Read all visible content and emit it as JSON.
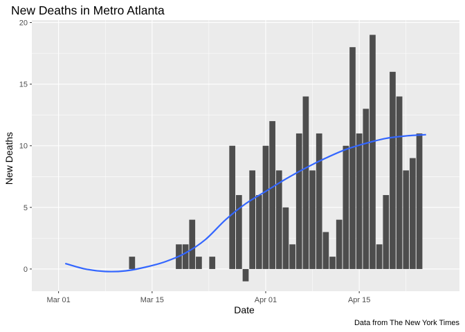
{
  "chart_data": {
    "type": "bar",
    "title": "New Deaths in Metro Atlanta",
    "xlabel": "Date",
    "ylabel": "New Deaths",
    "caption": "Data from The New York Times",
    "x_ticks": [
      {
        "label": "Mar 01",
        "date": "2020-03-01"
      },
      {
        "label": "Mar 15",
        "date": "2020-03-15"
      },
      {
        "label": "Apr 01",
        "date": "2020-04-01"
      },
      {
        "label": "Apr 15",
        "date": "2020-04-15"
      }
    ],
    "y_ticks": [
      0,
      5,
      10,
      15,
      20
    ],
    "xlim": [
      "2020-02-26",
      "2020-04-30"
    ],
    "ylim": [
      -1.8,
      20.2
    ],
    "grid": true,
    "colors": {
      "panel": "#ebebeb",
      "grid": "#ffffff",
      "bar": "#4d4d4d",
      "smooth": "#3366ff"
    },
    "series": [
      {
        "type": "bar",
        "x": [
          "2020-03-12",
          "2020-03-19",
          "2020-03-20",
          "2020-03-21",
          "2020-03-22",
          "2020-03-24",
          "2020-03-27",
          "2020-03-28",
          "2020-03-29",
          "2020-03-30",
          "2020-03-31",
          "2020-04-01",
          "2020-04-02",
          "2020-04-03",
          "2020-04-04",
          "2020-04-05",
          "2020-04-06",
          "2020-04-07",
          "2020-04-08",
          "2020-04-09",
          "2020-04-10",
          "2020-04-11",
          "2020-04-12",
          "2020-04-13",
          "2020-04-14",
          "2020-04-15",
          "2020-04-16",
          "2020-04-17",
          "2020-04-18",
          "2020-04-19",
          "2020-04-20",
          "2020-04-21",
          "2020-04-22",
          "2020-04-23",
          "2020-04-24",
          "2020-04-25"
        ],
        "values": [
          1,
          2,
          2,
          4,
          1,
          1,
          10,
          6,
          -1,
          8,
          6,
          10,
          12,
          8,
          5,
          2,
          11,
          14,
          8,
          11,
          3,
          1,
          4,
          10,
          18,
          11,
          13,
          19,
          2,
          6,
          16,
          14,
          8,
          9,
          11,
          0
        ]
      },
      {
        "type": "smooth",
        "x": [
          "2020-03-02",
          "2020-03-05",
          "2020-03-08",
          "2020-03-11",
          "2020-03-14",
          "2020-03-17",
          "2020-03-20",
          "2020-03-23",
          "2020-03-26",
          "2020-03-29",
          "2020-04-01",
          "2020-04-04",
          "2020-04-07",
          "2020-04-10",
          "2020-04-13",
          "2020-04-16",
          "2020-04-19",
          "2020-04-22",
          "2020-04-25"
        ],
        "values": [
          0.45,
          0.0,
          -0.2,
          -0.15,
          0.15,
          0.6,
          1.3,
          2.4,
          4.0,
          5.3,
          6.3,
          7.3,
          8.2,
          9.0,
          9.7,
          10.2,
          10.6,
          10.8,
          10.9
        ]
      }
    ]
  }
}
